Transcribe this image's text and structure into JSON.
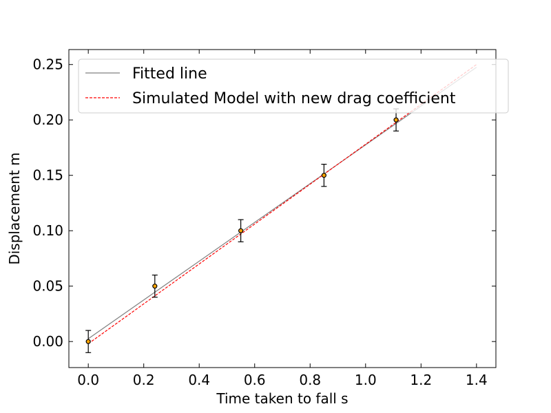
{
  "chart_data": {
    "type": "scatter",
    "title": "",
    "xlabel": "Time taken to fall s",
    "ylabel": "Displacement m",
    "xlim": [
      -0.07,
      1.47
    ],
    "ylim": [
      -0.0235,
      0.2635
    ],
    "xticks": [
      0.0,
      0.2,
      0.4,
      0.6,
      0.8,
      1.0,
      1.2,
      1.4
    ],
    "yticks": [
      0.0,
      0.05,
      0.1,
      0.15,
      0.2,
      0.25
    ],
    "xtick_labels": [
      "0.0",
      "0.2",
      "0.4",
      "0.6",
      "0.8",
      "1.0",
      "1.2",
      "1.4"
    ],
    "ytick_labels": [
      "0.00",
      "0.05",
      "0.10",
      "0.15",
      "0.20",
      "0.25"
    ],
    "grid": false,
    "legend_position": "top-right",
    "series": [
      {
        "name": "Fitted line",
        "kind": "line",
        "style": "solid",
        "color": "#808080",
        "x": [
          0.0,
          1.4
        ],
        "y": [
          0.0025,
          0.2475
        ]
      },
      {
        "name": "Simulated Model with new drag coefficient",
        "kind": "line",
        "style": "dashed",
        "color": "#ff0000",
        "x": [
          0.0,
          1.4
        ],
        "y": [
          -0.002,
          0.25
        ]
      },
      {
        "name": "",
        "kind": "errorbar-points",
        "marker_color": "#ffa500",
        "edge_color": "#000000",
        "x": [
          0.0,
          0.24,
          0.55,
          0.85,
          1.11
        ],
        "y": [
          0.0,
          0.05,
          0.1,
          0.15,
          0.2
        ],
        "yerr": [
          0.01,
          0.01,
          0.01,
          0.01,
          0.01
        ]
      }
    ]
  }
}
